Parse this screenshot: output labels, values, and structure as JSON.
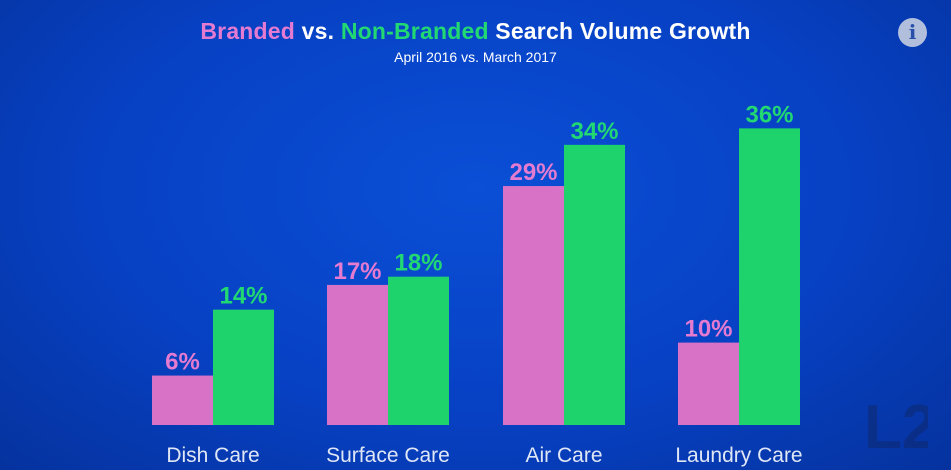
{
  "header": {
    "title_branded": "Branded",
    "title_vs": " vs. ",
    "title_nonbranded": "Non-Branded",
    "title_rest": " Search Volume Growth",
    "subtitle": "April 2016 vs. March 2017"
  },
  "info_icon": {
    "glyph": "i",
    "icon": "info-icon"
  },
  "logo": {
    "text": "L2"
  },
  "colors": {
    "branded": "#d872c6",
    "nonbranded": "#1fd36c",
    "branded_label": "#e47bd0",
    "nonbranded_label": "#22d872",
    "axis_label": "#dfe6f5"
  },
  "chart_data": {
    "type": "bar",
    "categories": [
      "Dish Care",
      "Surface Care",
      "Air Care",
      "Laundry Care"
    ],
    "series": [
      {
        "name": "Branded",
        "values": [
          6,
          17,
          29,
          10
        ],
        "labels": [
          "6%",
          "17%",
          "29%",
          "10%"
        ]
      },
      {
        "name": "Non-Branded",
        "values": [
          14,
          18,
          34,
          36
        ],
        "labels": [
          "14%",
          "18%",
          "34%",
          "36%"
        ]
      }
    ],
    "ylim": [
      0,
      40
    ],
    "grid": false,
    "legend": "title"
  }
}
